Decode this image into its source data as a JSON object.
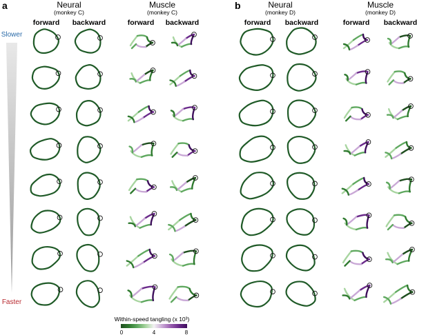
{
  "figure": {
    "panels": [
      {
        "letter": "a",
        "groups": [
          {
            "title": "Neural",
            "subtitle": "(monkey C)",
            "columns": [
              "forward",
              "backward"
            ]
          },
          {
            "title": "Muscle",
            "subtitle": "(monkey C)",
            "columns": [
              "forward",
              "backward"
            ]
          }
        ]
      },
      {
        "letter": "b",
        "groups": [
          {
            "title": "Neural",
            "subtitle": "(monkey D)",
            "columns": [
              "forward",
              "backward"
            ]
          },
          {
            "title": "Muscle",
            "subtitle": "(monkey D)",
            "columns": [
              "forward",
              "backward"
            ]
          }
        ]
      }
    ],
    "speed_axis": {
      "top_label": "Slower",
      "bottom_label": "Faster",
      "rows": 8
    },
    "colorbar": {
      "title": "Within-speed tangling (x 10³)",
      "ticks": [
        "0",
        "4",
        "8"
      ],
      "colors": [
        "#1e4d1e",
        "#2f7a2f",
        "#5fa85f",
        "#a8d5a0",
        "#f2f2f2",
        "#c9a8d6",
        "#9a5fb0",
        "#6a2a8a",
        "#3e0f5c"
      ]
    },
    "colors": {
      "neural_trace": "#1f5a27",
      "slower_label": "#2a6aa8",
      "faster_label": "#b8282e",
      "triangle": "#b3b3b3"
    }
  }
}
